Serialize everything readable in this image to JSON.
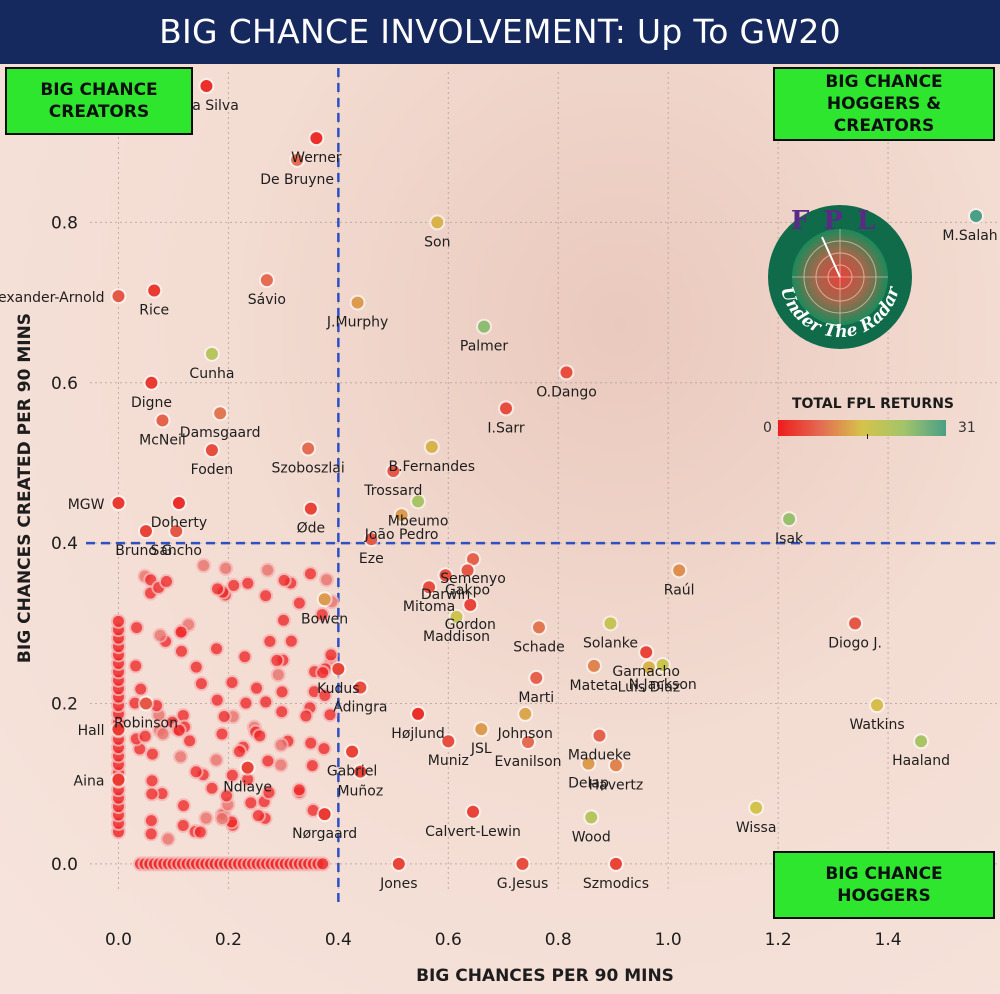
{
  "title": "BIG CHANCE INVOLVEMENT: Up To GW20",
  "quadrants": {
    "creators": "BIG CHANCE\nCREATORS",
    "hoggers_creators": "BIG CHANCE\nHOGGERS &\nCREATORS",
    "hoggers": "BIG CHANCE\nHOGGERS"
  },
  "logo": {
    "top_text": "FPL",
    "bottom_text": "Under The Radar"
  },
  "legend": {
    "title": "TOTAL FPL RETURNS",
    "min": "0",
    "max": "31"
  },
  "colors": {
    "title_bg": "#15295e",
    "quadrant_green": "#2fe62f",
    "ref_line": "#2f4fc4",
    "scale": [
      "#ee1c1c",
      "#e46a52",
      "#d6c34a",
      "#a2c46a",
      "#4a9f86"
    ]
  },
  "chart_data": {
    "type": "scatter",
    "title": "BIG CHANCE INVOLVEMENT: Up To GW20",
    "xlabel": "BIG CHANCES PER 90 MINS",
    "ylabel": "BIG CHANCES CREATED PER 90 MINS",
    "xlim": [
      -0.07,
      1.6
    ],
    "ylim": [
      -0.06,
      1.0
    ],
    "xticks": [
      0.0,
      0.2,
      0.4,
      0.6,
      0.8,
      1.0,
      1.2,
      1.4
    ],
    "xtick_labels": [
      "0.0",
      "0.2",
      "0.4",
      "0.6",
      "0.8",
      "1.0",
      "1.2",
      "1.4"
    ],
    "yticks": [
      0.0,
      0.2,
      0.4,
      0.6,
      0.8
    ],
    "ytick_labels": [
      "0.0",
      "0.2",
      "0.4",
      "0.6",
      "0.8"
    ],
    "reference_lines": {
      "x": 0.4,
      "y": 0.4
    },
    "color_scale": {
      "min": 0,
      "max": 31
    },
    "labeled_points": [
      {
        "name": "Jota Silva",
        "x": 0.16,
        "y": 0.97,
        "returns": 2
      },
      {
        "name": "Werner",
        "x": 0.36,
        "y": 0.905,
        "returns": 2
      },
      {
        "name": "De Bruyne",
        "x": 0.325,
        "y": 0.878,
        "returns": 8
      },
      {
        "name": "M.Salah",
        "x": 1.56,
        "y": 0.808,
        "returns": 31
      },
      {
        "name": "Son",
        "x": 0.58,
        "y": 0.8,
        "returns": 14
      },
      {
        "name": "Sávio",
        "x": 0.27,
        "y": 0.728,
        "returns": 8
      },
      {
        "name": "Rice",
        "x": 0.065,
        "y": 0.715,
        "returns": 3
      },
      {
        "name": "Alexander-Arnold",
        "x": 0.0,
        "y": 0.708,
        "returns": 6
      },
      {
        "name": "J.Murphy",
        "x": 0.435,
        "y": 0.7,
        "returns": 12
      },
      {
        "name": "Palmer",
        "x": 0.665,
        "y": 0.67,
        "returns": 25
      },
      {
        "name": "Cunha",
        "x": 0.17,
        "y": 0.636,
        "returns": 20
      },
      {
        "name": "O.Dango",
        "x": 0.815,
        "y": 0.613,
        "returns": 5
      },
      {
        "name": "Digne",
        "x": 0.06,
        "y": 0.6,
        "returns": 3
      },
      {
        "name": "I.Sarr",
        "x": 0.705,
        "y": 0.568,
        "returns": 5
      },
      {
        "name": "Damsgaard",
        "x": 0.185,
        "y": 0.562,
        "returns": 9
      },
      {
        "name": "McNeil",
        "x": 0.08,
        "y": 0.553,
        "returns": 7
      },
      {
        "name": "Foden",
        "x": 0.17,
        "y": 0.516,
        "returns": 5
      },
      {
        "name": "Szoboszlai",
        "x": 0.345,
        "y": 0.518,
        "returns": 8
      },
      {
        "name": "Trossard",
        "x": 0.5,
        "y": 0.49,
        "returns": 6
      },
      {
        "name": "B.Fernandes",
        "x": 0.57,
        "y": 0.52,
        "returns": 14
      },
      {
        "name": "Mbeumo",
        "x": 0.545,
        "y": 0.452,
        "returns": 22
      },
      {
        "name": "Isak",
        "x": 1.22,
        "y": 0.43,
        "returns": 24
      },
      {
        "name": "MGW",
        "x": 0.0,
        "y": 0.45,
        "returns": 3
      },
      {
        "name": "Doherty",
        "x": 0.11,
        "y": 0.45,
        "returns": 2
      },
      {
        "name": "Øde",
        "x": 0.35,
        "y": 0.443,
        "returns": 4
      },
      {
        "name": "João Pedro",
        "x": 0.515,
        "y": 0.435,
        "returns": 12
      },
      {
        "name": "Eze",
        "x": 0.46,
        "y": 0.405,
        "returns": 6
      },
      {
        "name": "Bruno G.",
        "x": 0.05,
        "y": 0.415,
        "returns": 4
      },
      {
        "name": "Sancho",
        "x": 0.105,
        "y": 0.415,
        "returns": 6
      },
      {
        "name": "Semenyo",
        "x": 0.645,
        "y": 0.38,
        "returns": 7
      },
      {
        "name": "Darwin",
        "x": 0.595,
        "y": 0.36,
        "returns": 5
      },
      {
        "name": "Raúl",
        "x": 1.02,
        "y": 0.366,
        "returns": 11
      },
      {
        "name": "Gakpo",
        "x": 0.635,
        "y": 0.366,
        "returns": 6
      },
      {
        "name": "Mitoma",
        "x": 0.565,
        "y": 0.345,
        "returns": 5
      },
      {
        "name": "Bowen",
        "x": 0.375,
        "y": 0.33,
        "returns": 12
      },
      {
        "name": "Gordon",
        "x": 0.64,
        "y": 0.323,
        "returns": 4
      },
      {
        "name": "Solanke",
        "x": 0.895,
        "y": 0.3,
        "returns": 18
      },
      {
        "name": "Maddison",
        "x": 0.615,
        "y": 0.308,
        "returns": 17
      },
      {
        "name": "Diogo J.",
        "x": 1.34,
        "y": 0.3,
        "returns": 6
      },
      {
        "name": "Schade",
        "x": 0.765,
        "y": 0.295,
        "returns": 9
      },
      {
        "name": "Garnacho",
        "x": 0.96,
        "y": 0.264,
        "returns": 4
      },
      {
        "name": "N.Jackson",
        "x": 0.99,
        "y": 0.248,
        "returns": 17
      },
      {
        "name": "Kudus",
        "x": 0.4,
        "y": 0.243,
        "returns": 4
      },
      {
        "name": "Marti",
        "x": 0.76,
        "y": 0.232,
        "returns": 7
      },
      {
        "name": "Mateta",
        "x": 0.865,
        "y": 0.247,
        "returns": 10
      },
      {
        "name": "Luis Díaz",
        "x": 0.965,
        "y": 0.245,
        "returns": 14
      },
      {
        "name": "Robinson",
        "x": 0.05,
        "y": 0.2,
        "returns": 6
      },
      {
        "name": "Adingra",
        "x": 0.44,
        "y": 0.22,
        "returns": 5
      },
      {
        "name": "Watkins",
        "x": 1.38,
        "y": 0.198,
        "returns": 15
      },
      {
        "name": "Højlund",
        "x": 0.545,
        "y": 0.187,
        "returns": 2
      },
      {
        "name": "JSL",
        "x": 0.66,
        "y": 0.168,
        "returns": 12
      },
      {
        "name": "Johnson",
        "x": 0.74,
        "y": 0.187,
        "returns": 13
      },
      {
        "name": "Hall",
        "x": 0.0,
        "y": 0.168,
        "returns": 3
      },
      {
        "name": "Madueke",
        "x": 0.875,
        "y": 0.16,
        "returns": 7
      },
      {
        "name": "Haaland",
        "x": 1.46,
        "y": 0.153,
        "returns": 22
      },
      {
        "name": "Gabriel",
        "x": 0.425,
        "y": 0.14,
        "returns": 4
      },
      {
        "name": "Muniz",
        "x": 0.6,
        "y": 0.153,
        "returns": 5
      },
      {
        "name": "Evanilson",
        "x": 0.745,
        "y": 0.152,
        "returns": 8
      },
      {
        "name": "Ndiaye",
        "x": 0.235,
        "y": 0.12,
        "returns": 4
      },
      {
        "name": "Havertz",
        "x": 0.905,
        "y": 0.123,
        "returns": 10
      },
      {
        "name": "Delap",
        "x": 0.855,
        "y": 0.125,
        "returns": 12
      },
      {
        "name": "Aina",
        "x": 0.0,
        "y": 0.105,
        "returns": 3
      },
      {
        "name": "Muñoz",
        "x": 0.44,
        "y": 0.115,
        "returns": 4
      },
      {
        "name": "Wissa",
        "x": 1.16,
        "y": 0.07,
        "returns": 16
      },
      {
        "name": "Wood",
        "x": 0.86,
        "y": 0.058,
        "returns": 20
      },
      {
        "name": "Calvert-Lewin",
        "x": 0.645,
        "y": 0.065,
        "returns": 4
      },
      {
        "name": "Nørgaard",
        "x": 0.375,
        "y": 0.062,
        "returns": 3
      },
      {
        "name": "Jones",
        "x": 0.51,
        "y": 0.0,
        "returns": 4
      },
      {
        "name": "G.Jesus",
        "x": 0.735,
        "y": 0.0,
        "returns": 5
      },
      {
        "name": "Szmodics",
        "x": 0.905,
        "y": 0.0,
        "returns": 4
      }
    ]
  }
}
